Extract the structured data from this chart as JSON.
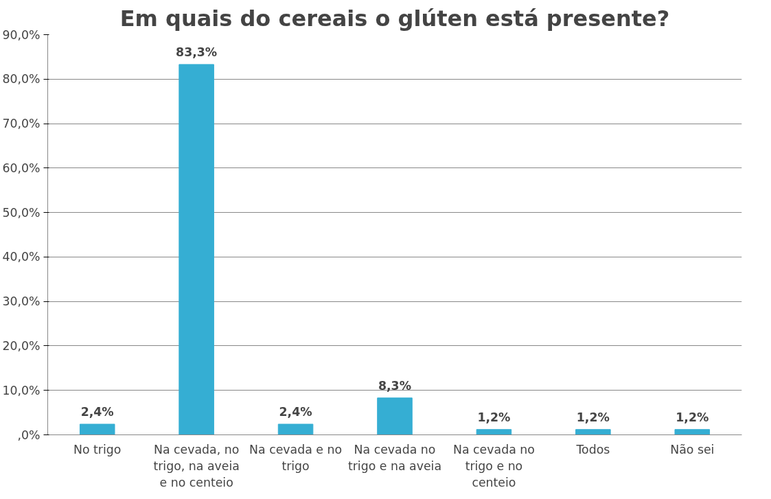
{
  "chart_data": {
    "type": "bar",
    "title": "Em quais do cereais o glúten está presente?",
    "categories": [
      "No trigo",
      "Na cevada, no trigo, na aveia e no centeio",
      "Na cevada e no trigo",
      "Na cevada no trigo e na aveia",
      "Na cevada no trigo e no centeio",
      "Todos",
      "Não sei"
    ],
    "values": [
      2.4,
      83.3,
      2.4,
      8.3,
      1.2,
      1.2,
      1.2
    ],
    "value_labels": [
      "2,4%",
      "83,3%",
      "2,4%",
      "8,3%",
      "1,2%",
      "1,2%",
      "1,2%"
    ],
    "color": "#35aed3",
    "ylim": [
      0,
      90
    ],
    "yticks": [
      {
        "value": 0,
        "label": ",0%"
      },
      {
        "value": 10,
        "label": "10,0%"
      },
      {
        "value": 20,
        "label": "20,0%"
      },
      {
        "value": 30,
        "label": "30,0%"
      },
      {
        "value": 40,
        "label": "40,0%"
      },
      {
        "value": 50,
        "label": "50,0%"
      },
      {
        "value": 60,
        "label": "60,0%"
      },
      {
        "value": 70,
        "label": "70,0%"
      },
      {
        "value": 80,
        "label": "80,0%"
      },
      {
        "value": 90,
        "label": "90,0%"
      }
    ],
    "grid": "y"
  }
}
